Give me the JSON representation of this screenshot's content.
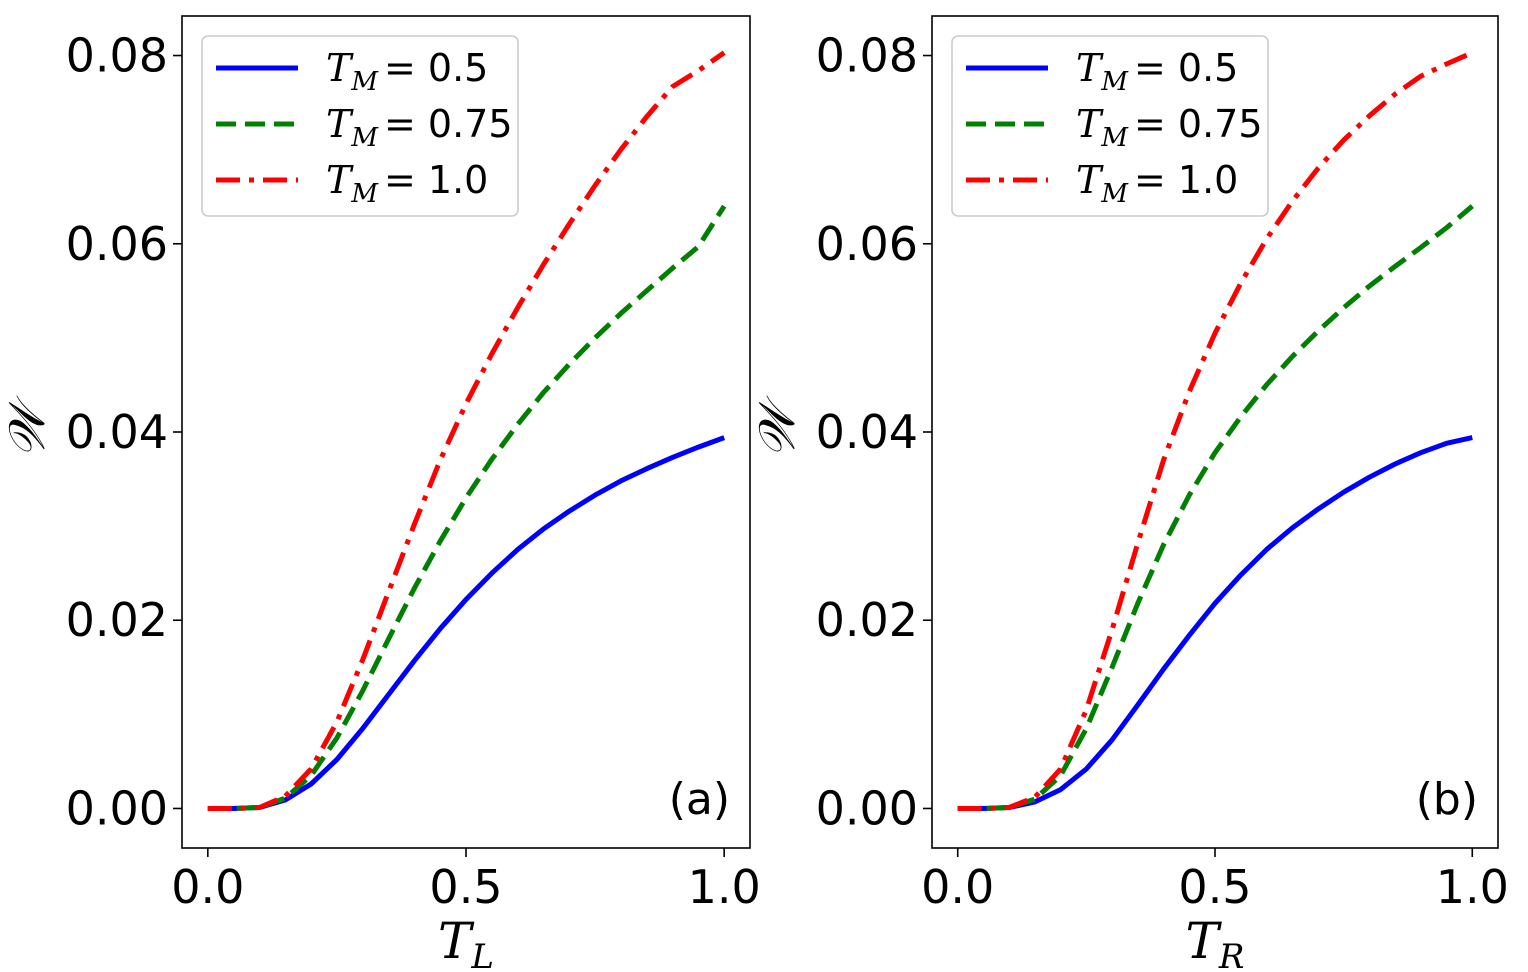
{
  "chart_data": [
    {
      "type": "line",
      "panel_label": "(a)",
      "xlabel": {
        "symbol": "T",
        "subscript": "L"
      },
      "ylabel": "𝒲",
      "xlim": [
        -0.05,
        1.05
      ],
      "ylim": [
        -0.0042,
        0.0842
      ],
      "xticks": [
        0.0,
        0.5,
        1.0
      ],
      "xtick_labels": [
        "0.0",
        "0.5",
        "1.0"
      ],
      "yticks": [
        0.0,
        0.02,
        0.04,
        0.06,
        0.08
      ],
      "ytick_labels": [
        "0.00",
        "0.02",
        "0.04",
        "0.06",
        "0.08"
      ],
      "legend_position": "top-left",
      "series": [
        {
          "name": "T_M = 0.5",
          "legend_symbol": "T",
          "legend_subscript": "M",
          "legend_value": "= 0.5",
          "color": "#0000ff",
          "style": "solid",
          "x": [
            0.0,
            0.05,
            0.1,
            0.15,
            0.2,
            0.25,
            0.3,
            0.35,
            0.4,
            0.45,
            0.5,
            0.55,
            0.6,
            0.65,
            0.7,
            0.75,
            0.8,
            0.85,
            0.9,
            0.95,
            1.0
          ],
          "y": [
            0.0,
            0.0,
            0.0001,
            0.0009,
            0.0026,
            0.0052,
            0.0085,
            0.0121,
            0.0157,
            0.0191,
            0.0222,
            0.025,
            0.0275,
            0.0297,
            0.0316,
            0.0333,
            0.0348,
            0.0361,
            0.0373,
            0.0384,
            0.0394
          ]
        },
        {
          "name": "T_M = 0.75",
          "legend_symbol": "T",
          "legend_subscript": "M",
          "legend_value": "= 0.75",
          "color": "#008000",
          "style": "dashed",
          "x": [
            0.0,
            0.05,
            0.1,
            0.15,
            0.2,
            0.25,
            0.3,
            0.35,
            0.4,
            0.45,
            0.5,
            0.55,
            0.6,
            0.65,
            0.7,
            0.75,
            0.8,
            0.85,
            0.9,
            0.95,
            1.0
          ],
          "y": [
            0.0,
            0.0,
            0.0001,
            0.0011,
            0.0035,
            0.0075,
            0.0125,
            0.018,
            0.0234,
            0.0284,
            0.033,
            0.0371,
            0.0408,
            0.0442,
            0.0472,
            0.05,
            0.0526,
            0.055,
            0.0574,
            0.0597,
            0.064
          ]
        },
        {
          "name": "T_M = 1.0",
          "legend_symbol": "T",
          "legend_subscript": "M",
          "legend_value": "= 1.0",
          "color": "#ff0000",
          "style": "dashdot",
          "x": [
            0.0,
            0.05,
            0.1,
            0.15,
            0.2,
            0.25,
            0.3,
            0.35,
            0.4,
            0.45,
            0.5,
            0.55,
            0.6,
            0.65,
            0.7,
            0.75,
            0.8,
            0.85,
            0.9,
            0.95,
            1.0
          ],
          "y": [
            0.0,
            0.0,
            0.0001,
            0.0013,
            0.0042,
            0.0092,
            0.0158,
            0.023,
            0.0302,
            0.037,
            0.043,
            0.0483,
            0.0532,
            0.0578,
            0.0621,
            0.0662,
            0.07,
            0.0735,
            0.0767,
            0.0784,
            0.0803
          ]
        }
      ]
    },
    {
      "type": "line",
      "panel_label": "(b)",
      "xlabel": {
        "symbol": "T",
        "subscript": "R"
      },
      "ylabel": "𝒲",
      "xlim": [
        -0.05,
        1.05
      ],
      "ylim": [
        -0.0042,
        0.0842
      ],
      "xticks": [
        0.0,
        0.5,
        1.0
      ],
      "xtick_labels": [
        "0.0",
        "0.5",
        "1.0"
      ],
      "yticks": [
        0.0,
        0.02,
        0.04,
        0.06,
        0.08
      ],
      "ytick_labels": [
        "0.00",
        "0.02",
        "0.04",
        "0.06",
        "0.08"
      ],
      "legend_position": "top-left",
      "series": [
        {
          "name": "T_M = 0.5",
          "legend_symbol": "T",
          "legend_subscript": "M",
          "legend_value": "= 0.5",
          "color": "#0000ff",
          "style": "solid",
          "x": [
            0.0,
            0.05,
            0.1,
            0.15,
            0.2,
            0.25,
            0.3,
            0.35,
            0.4,
            0.45,
            0.5,
            0.55,
            0.6,
            0.65,
            0.7,
            0.75,
            0.8,
            0.85,
            0.9,
            0.95,
            1.0
          ],
          "y": [
            0.0,
            0.0,
            0.0001,
            0.0007,
            0.002,
            0.0042,
            0.0073,
            0.011,
            0.0148,
            0.0184,
            0.0218,
            0.0248,
            0.0275,
            0.0298,
            0.0318,
            0.0336,
            0.0352,
            0.0366,
            0.0378,
            0.0388,
            0.0394
          ]
        },
        {
          "name": "T_M = 0.75",
          "legend_symbol": "T",
          "legend_subscript": "M",
          "legend_value": "= 0.75",
          "color": "#008000",
          "style": "dashed",
          "x": [
            0.0,
            0.05,
            0.1,
            0.15,
            0.2,
            0.25,
            0.3,
            0.35,
            0.4,
            0.45,
            0.5,
            0.55,
            0.6,
            0.65,
            0.7,
            0.75,
            0.8,
            0.85,
            0.9,
            0.95,
            1.0
          ],
          "y": [
            0.0,
            0.0,
            0.0001,
            0.001,
            0.0035,
            0.0085,
            0.015,
            0.0218,
            0.028,
            0.0333,
            0.0378,
            0.0416,
            0.045,
            0.048,
            0.0507,
            0.0532,
            0.0555,
            0.0576,
            0.0596,
            0.0617,
            0.064
          ]
        },
        {
          "name": "T_M = 1.0",
          "legend_symbol": "T",
          "legend_subscript": "M",
          "legend_value": "= 1.0",
          "color": "#ff0000",
          "style": "dashdot",
          "x": [
            0.0,
            0.05,
            0.1,
            0.15,
            0.2,
            0.25,
            0.3,
            0.35,
            0.4,
            0.45,
            0.5,
            0.55,
            0.6,
            0.65,
            0.7,
            0.75,
            0.8,
            0.85,
            0.9,
            0.95,
            1.0
          ],
          "y": [
            0.0,
            0.0,
            0.0001,
            0.0012,
            0.0042,
            0.0105,
            0.019,
            0.0282,
            0.037,
            0.0443,
            0.0505,
            0.0558,
            0.0605,
            0.0645,
            0.068,
            0.071,
            0.0736,
            0.0759,
            0.0778,
            0.0791,
            0.0803
          ]
        }
      ]
    }
  ]
}
